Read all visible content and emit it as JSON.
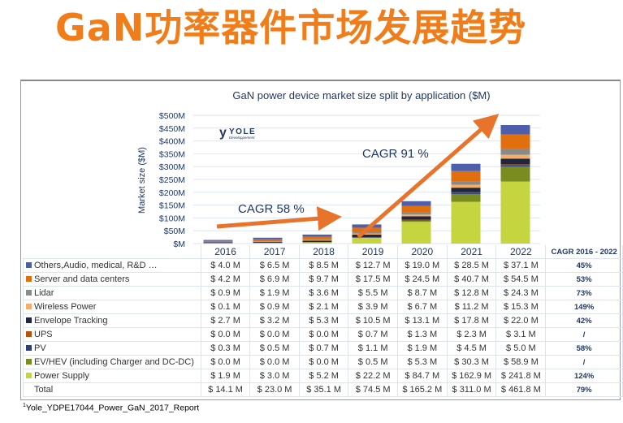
{
  "slide_title": "GaN功率器件市场发展趋势",
  "footnote": {
    "marker": "1",
    "text": "Yole_YDPE17044_Power_GaN_2017_Report"
  },
  "logo": {
    "name": "YOLE",
    "sub": "Développement"
  },
  "annotations": [
    {
      "text": "CAGR 58 %",
      "color": "#1f3864"
    },
    {
      "text": "CAGR 91 %",
      "color": "#1f3864"
    }
  ],
  "chart_data": {
    "type": "bar",
    "stacked": true,
    "title": "GaN power device market size split by application ($M)",
    "ylabel": "Market size ($M)",
    "ylim": [
      0,
      500
    ],
    "yticks": [
      "$M",
      "$50M",
      "$100M",
      "$150M",
      "$200M",
      "$250M",
      "$300M",
      "$350M",
      "$400M",
      "$450M",
      "$500M"
    ],
    "categories": [
      "2016",
      "2017",
      "2018",
      "2019",
      "2020",
      "2021",
      "2022"
    ],
    "cagr_header": "CAGR 2016 - 2022",
    "series": [
      {
        "name": "Power Supply",
        "color": "#c4d540",
        "values": [
          1.9,
          3.0,
          5.2,
          22.2,
          84.7,
          162.9,
          241.8
        ],
        "labels": [
          "$ 1.9 M",
          "$ 3.0 M",
          "$ 5.2 M",
          "$ 22.2 M",
          "$ 84.7 M",
          "$ 162.9 M",
          "$ 241.8 M"
        ],
        "cagr": "124%"
      },
      {
        "name": "EV/HEV (including Charger and DC-DC)",
        "color": "#7a8b1f",
        "values": [
          0,
          0,
          0,
          0.5,
          5.3,
          30.3,
          58.9
        ],
        "labels": [
          "$ 0.0 M",
          "$ 0.0 M",
          "$ 0.0 M",
          "$ 0.5 M",
          "$ 5.3 M",
          "$ 30.3 M",
          "$ 58.9 M"
        ],
        "cagr": "/"
      },
      {
        "name": "PV",
        "color": "#2f3f7c",
        "values": [
          0.3,
          0.5,
          0.7,
          1.1,
          1.9,
          4.5,
          5.0
        ],
        "labels": [
          "$ 0.3 M",
          "$ 0.5 M",
          "$ 0.7 M",
          "$ 1.1 M",
          "$ 1.9 M",
          "$ 4.5 M",
          "$ 5.0 M"
        ],
        "cagr": "58%"
      },
      {
        "name": "UPS",
        "color": "#b8530f",
        "values": [
          0,
          0,
          0,
          0.7,
          1.3,
          2.3,
          3.1
        ],
        "labels": [
          "$ 0.0 M",
          "$ 0.0 M",
          "$ 0.0 M",
          "$ 0.7 M",
          "$ 1.3 M",
          "$ 2.3 M",
          "$ 3.1 M"
        ],
        "cagr": "/"
      },
      {
        "name": "Envelope Tracking",
        "color": "#1e2640",
        "values": [
          2.7,
          3.2,
          5.3,
          10.5,
          13.1,
          17.8,
          22.0
        ],
        "labels": [
          "$ 2.7 M",
          "$ 3.2 M",
          "$ 5.3 M",
          "$ 10.5 M",
          "$ 13.1 M",
          "$ 17.8 M",
          "$ 22.0 M"
        ],
        "cagr": "42%"
      },
      {
        "name": "Wireless Power",
        "color": "#f5ae6a",
        "values": [
          0.1,
          0.9,
          2.1,
          3.9,
          6.7,
          11.2,
          15.3
        ],
        "labels": [
          "$ 0.1 M",
          "$ 0.9 M",
          "$ 2.1 M",
          "$ 3.9 M",
          "$ 6.7 M",
          "$ 11.2 M",
          "$ 15.3 M"
        ],
        "cagr": "149%"
      },
      {
        "name": "Lidar",
        "color": "#8a8a8a",
        "values": [
          0.9,
          1.9,
          3.6,
          5.5,
          8.7,
          12.8,
          24.3
        ],
        "labels": [
          "$ 0.9 M",
          "$ 1.9 M",
          "$ 3.6 M",
          "$ 5.5 M",
          "$ 8.7 M",
          "$ 12.8 M",
          "$ 24.3 M"
        ],
        "cagr": "73%"
      },
      {
        "name": "Server and data centers",
        "color": "#e26f0e",
        "values": [
          4.2,
          6.9,
          9.7,
          17.5,
          24.5,
          40.7,
          54.5
        ],
        "labels": [
          "$ 4.2 M",
          "$ 6.9 M",
          "$ 9.7 M",
          "$ 17.5 M",
          "$ 24.5 M",
          "$ 40.7 M",
          "$ 54.5 M"
        ],
        "cagr": "53%"
      },
      {
        "name": "Others,Audio, medical, R&D …",
        "color": "#4d5fab",
        "values": [
          4.0,
          6.5,
          8.5,
          12.7,
          19.0,
          28.5,
          37.1
        ],
        "labels": [
          "$ 4.0 M",
          "$ 6.5 M",
          "$ 8.5 M",
          "$ 12.7 M",
          "$ 19.0 M",
          "$ 28.5 M",
          "$ 37.1 M"
        ],
        "cagr": "45%"
      }
    ],
    "total": {
      "name": "Total",
      "values": [
        14.1,
        23.0,
        35.1,
        74.5,
        165.2,
        311.0,
        461.8
      ],
      "labels": [
        "$ 14.1 M",
        "$ 23.0 M",
        "$ 35.1 M",
        "$ 74.5 M",
        "$ 165.2 M",
        "$ 311.0 M",
        "$ 461.8 M"
      ],
      "cagr": "79%"
    }
  }
}
